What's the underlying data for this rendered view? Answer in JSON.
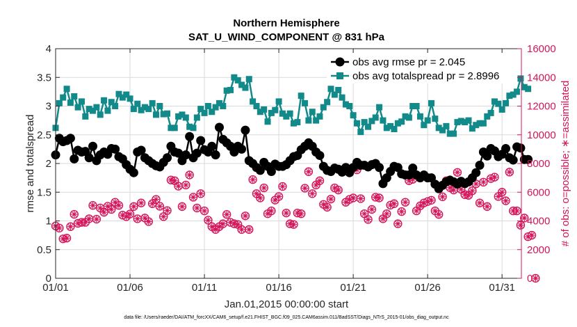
{
  "chart_data": {
    "type": "line",
    "title": "Northern Hemisphere",
    "subtitle": "SAT_U_WIND_COMPONENT @ 831 hPa",
    "xlabel": "Jan.01,2015 00:00:00 start",
    "ylabel": "rmse and totalspread",
    "y2label": "# of obs: o=possible; ∗=assimilated",
    "xlim": [
      0,
      31.3
    ],
    "ylim": [
      0,
      4
    ],
    "y2lim": [
      0,
      16000
    ],
    "xticks": [
      0,
      5,
      10,
      15,
      20,
      25,
      30
    ],
    "xtick_labels": [
      "01/01",
      "01/06",
      "01/11",
      "01/16",
      "01/21",
      "01/26",
      "01/31"
    ],
    "yticks": [
      0,
      0.5,
      1,
      1.5,
      2,
      2.5,
      3,
      3.5,
      4
    ],
    "ytick_labels": [
      "0",
      "0.5",
      "1",
      "1.5",
      "2",
      "2.5",
      "3",
      "3.5",
      "4"
    ],
    "y2ticks": [
      0,
      2000,
      4000,
      6000,
      8000,
      10000,
      12000,
      14000,
      16000
    ],
    "y2tick_labels": [
      "0",
      "2000",
      "4000",
      "6000",
      "8000",
      "10000",
      "12000",
      "14000",
      "16000"
    ],
    "grid": true,
    "legend_position": "top-right",
    "footnote": "data file: /Users/raeder/DAI/ATM_forcXX/CAM6_setup/f.e21.FHIST_BGC.f09_025.CAM6assim.011/BadSST/Diags_NTrS_2015-01/obs_diag_output.nc",
    "colors": {
      "rmse": "#000000",
      "spread": "#128a8a",
      "obs": "#d4145a",
      "grid": "#d9d9d9"
    },
    "series": [
      {
        "name": "obs avg rmse pr = 2.045",
        "axis": "left",
        "marker": "circle",
        "x0": 0,
        "dx": 0.25,
        "values": [
          2.15,
          2.44,
          2.38,
          2.4,
          2.44,
          2.08,
          2.23,
          2.2,
          2.21,
          2.1,
          2.3,
          2.05,
          2.15,
          2.2,
          2.16,
          2.26,
          2.25,
          2.12,
          2.08,
          1.98,
          1.9,
          1.84,
          2.2,
          2.23,
          2.1,
          2.05,
          2.0,
          1.96,
          1.94,
          2.02,
          2.1,
          2.3,
          2.2,
          2.18,
          2.05,
          2.15,
          2.47,
          2.1,
          2.18,
          2.4,
          2.24,
          2.2,
          2.3,
          2.15,
          2.63,
          2.42,
          2.36,
          2.3,
          2.2,
          2.3,
          2.25,
          2.58,
          2.05,
          2.0,
          1.93,
          1.88,
          2.02,
          1.95,
          1.86,
          1.99,
          1.95,
          1.95,
          1.98,
          2.05,
          2.12,
          2.14,
          2.24,
          2.3,
          2.36,
          2.3,
          2.2,
          2.14,
          1.95,
          1.88,
          1.86,
          1.92,
          1.9,
          1.85,
          1.93,
          1.84,
          1.93,
          2.02,
          1.97,
          1.97,
          1.94,
          1.98,
          2.0,
          1.93,
          1.65,
          1.75,
          1.86,
          1.95,
          1.93,
          1.82,
          1.8,
          1.8,
          1.92,
          1.8,
          1.75,
          1.8,
          1.75,
          1.75,
          1.64,
          1.56,
          1.62,
          1.68,
          1.71,
          1.68,
          1.64,
          1.69,
          1.65,
          1.68,
          1.75,
          1.84,
          1.97,
          2.2,
          2.13,
          2.26,
          2.22,
          2.12,
          2.16,
          2.26,
          2.1,
          2.06,
          2.29,
          2.27,
          2.07,
          2.07
        ]
      },
      {
        "name": "obs avg totalspread pr = 2.8996",
        "axis": "left",
        "marker": "square",
        "x0": 0,
        "dx": 0.25,
        "values": [
          2.62,
          3.05,
          3.15,
          3.3,
          3.06,
          3.17,
          2.98,
          3.08,
          2.82,
          2.95,
          2.92,
          2.98,
          2.85,
          3.1,
          2.92,
          3.07,
          3.0,
          3.21,
          3.15,
          3.2,
          3.13,
          2.95,
          3.04,
          2.93,
          2.98,
          2.95,
          3.05,
          2.85,
          3.0,
          2.86,
          2.87,
          2.62,
          2.62,
          2.82,
          2.85,
          2.8,
          2.64,
          2.62,
          2.8,
          2.95,
          2.88,
          3.0,
          2.9,
          2.98,
          3.05,
          3.0,
          3.27,
          3.28,
          3.5,
          3.45,
          3.37,
          3.32,
          3.47,
          3.08,
          3.0,
          2.9,
          2.94,
          2.73,
          2.88,
          2.93,
          3.08,
          2.87,
          2.82,
          2.87,
          2.7,
          2.72,
          3.18,
          3.05,
          2.75,
          2.9,
          2.75,
          2.82,
          2.98,
          3.07,
          3.3,
          3.2,
          3.28,
          3.15,
          3.03,
          3.0,
          2.84,
          2.7,
          2.55,
          2.72,
          2.64,
          2.74,
          2.8,
          2.98,
          2.75,
          2.62,
          2.65,
          2.6,
          2.7,
          2.73,
          2.82,
          2.8,
          3.0,
          3.0,
          2.82,
          2.67,
          2.75,
          3.05,
          2.78,
          2.62,
          2.58,
          2.65,
          2.52,
          2.52,
          2.72,
          2.74,
          2.72,
          2.75,
          2.61,
          2.67,
          2.7,
          2.7,
          2.82,
          2.88,
          3.08,
          3.04,
          2.94,
          3.05,
          3.18,
          3.2,
          3.25,
          3.48,
          3.33,
          3.3
        ]
      },
      {
        "name": "possible obs",
        "axis": "right",
        "marker": "o",
        "x0": 0,
        "dx": 0.25,
        "values": [
          3650,
          3500,
          2750,
          2800,
          3600,
          4460,
          3830,
          3900,
          3900,
          4150,
          5080,
          4120,
          4900,
          4600,
          5020,
          4800,
          5300,
          5080,
          4400,
          4300,
          4480,
          5000,
          4150,
          5250,
          4200,
          3950,
          5200,
          5500,
          5020,
          4300,
          4720,
          6850,
          6800,
          6420,
          5000,
          6500,
          7200,
          5650,
          4900,
          5900,
          4700,
          4050,
          3600,
          3400,
          3600,
          3800,
          4450,
          3900,
          3800,
          3750,
          3400,
          4350,
          3400,
          6880,
          5900,
          5600,
          6300,
          4500,
          4700,
          5450,
          5700,
          6400,
          4550,
          3800,
          3750,
          4550,
          4500,
          6280,
          7430,
          5900,
          6500,
          6800,
          5150,
          4950,
          5520,
          6300,
          6150,
          7560,
          5300,
          5500,
          5600,
          7560,
          5550,
          4500,
          4100,
          4800,
          5650,
          5600,
          4150,
          4500,
          5100,
          5200,
          3800,
          4650,
          5300,
          6800,
          6900,
          4700,
          5050,
          5250,
          5350,
          5440,
          4700,
          4450,
          5680,
          6800,
          6320,
          6150,
          7380,
          6200,
          5830,
          5780,
          6100,
          6580,
          5250,
          6700,
          5000,
          6950,
          7050,
          5700,
          6000,
          5400,
          7400,
          4700,
          4700,
          3700,
          4200,
          2900,
          3000,
          0
        ]
      },
      {
        "name": "assimilated obs",
        "axis": "right",
        "marker": "asterisk",
        "x0": 0,
        "dx": 0.25,
        "values": [
          3650,
          3500,
          2750,
          2800,
          3600,
          4460,
          3830,
          3900,
          3900,
          4150,
          5080,
          4120,
          4900,
          4600,
          5020,
          4800,
          5300,
          5080,
          4400,
          4300,
          4480,
          5000,
          4150,
          5250,
          4200,
          3950,
          5200,
          5500,
          5020,
          4300,
          4720,
          6850,
          6800,
          6420,
          5000,
          6500,
          7200,
          5650,
          4900,
          5900,
          4700,
          4050,
          3600,
          3400,
          3600,
          3800,
          4450,
          3900,
          3800,
          3750,
          3400,
          4350,
          3400,
          6880,
          5900,
          5600,
          6300,
          4500,
          4700,
          5450,
          5700,
          6400,
          4550,
          3800,
          3750,
          4550,
          4500,
          6280,
          7430,
          5900,
          6500,
          6800,
          5150,
          4950,
          5520,
          6300,
          6150,
          7560,
          5300,
          5500,
          5600,
          7560,
          5550,
          4500,
          4100,
          4800,
          5650,
          5600,
          4150,
          4500,
          5100,
          5200,
          3800,
          4650,
          5300,
          6800,
          6900,
          4700,
          5050,
          5250,
          5350,
          5440,
          4700,
          4450,
          5680,
          6800,
          6320,
          6150,
          7380,
          6200,
          5830,
          5780,
          6100,
          6580,
          5250,
          6700,
          5000,
          6950,
          7050,
          5700,
          6000,
          5400,
          7400,
          4700,
          4700,
          3700,
          4200,
          2900,
          3000,
          0
        ]
      }
    ]
  }
}
